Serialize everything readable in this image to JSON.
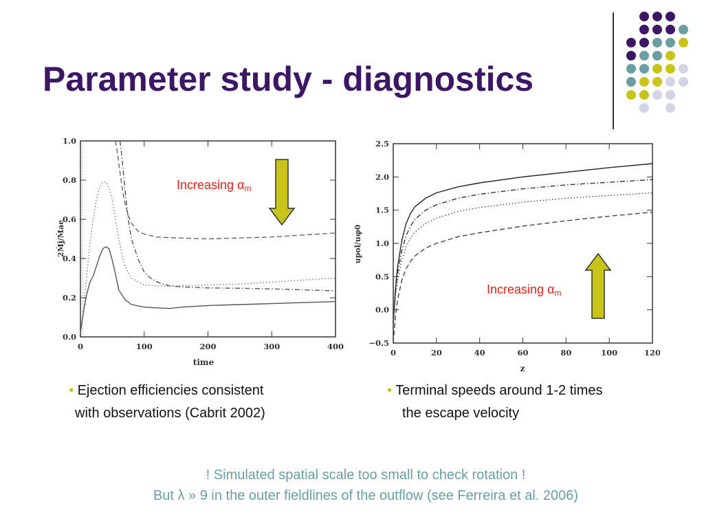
{
  "slide": {
    "title": "Parameter study - diagnostics",
    "accent_colors": [
      "#3b1766",
      "#6b9ea0",
      "#c8c41a",
      "#d4d4e8"
    ]
  },
  "bullets": {
    "left_line1": "Ejection efficiencies consistent",
    "left_line2": "with observations (Cabrit 2002)",
    "right_line1": "Terminal speeds around 1-2 times",
    "right_line2": "the escape velocity",
    "bullet_glyph": "•"
  },
  "notes": {
    "line1": "! Simulated spatial scale too small to check rotation !",
    "line2": "But λ » 9 in the outer fieldlines of the outflow (see Ferreira et al. 2006)"
  },
  "chart_data": [
    {
      "type": "line",
      "xlabel": "time",
      "ylabel": "2Ṁj/Ṁae",
      "xlim": [
        0,
        400
      ],
      "ylim": [
        0,
        1.0
      ],
      "xticks": [
        "0",
        "100",
        "200",
        "300",
        "400"
      ],
      "yticks": [
        "0.0",
        "0.2",
        "0.4",
        "0.6",
        "0.8",
        "1.0"
      ],
      "annotation": {
        "text": "Increasing ",
        "symbol": "α",
        "sub": "m",
        "arrow": "down"
      },
      "series": [
        {
          "style": "solid",
          "color": "#555555",
          "x": [
            0,
            5,
            10,
            15,
            20,
            25,
            30,
            35,
            40,
            45,
            50,
            55,
            60,
            70,
            80,
            100,
            120,
            140,
            160,
            200,
            250,
            300,
            350,
            400
          ],
          "y": [
            0.02,
            0.13,
            0.22,
            0.28,
            0.31,
            0.36,
            0.41,
            0.45,
            0.46,
            0.45,
            0.39,
            0.32,
            0.24,
            0.19,
            0.165,
            0.152,
            0.148,
            0.145,
            0.152,
            0.16,
            0.165,
            0.17,
            0.175,
            0.18
          ]
        },
        {
          "style": "dotted",
          "color": "#777777",
          "x": [
            0,
            5,
            10,
            15,
            20,
            25,
            30,
            35,
            40,
            45,
            50,
            55,
            60,
            65,
            70,
            80,
            100,
            120,
            150,
            200,
            250,
            300,
            350,
            400
          ],
          "y": [
            0.02,
            0.15,
            0.32,
            0.48,
            0.6,
            0.7,
            0.76,
            0.79,
            0.79,
            0.76,
            0.7,
            0.6,
            0.5,
            0.42,
            0.36,
            0.3,
            0.265,
            0.26,
            0.26,
            0.265,
            0.27,
            0.28,
            0.29,
            0.3
          ]
        },
        {
          "style": "dashdot",
          "color": "#555555",
          "x": [
            62,
            65,
            70,
            75,
            80,
            90,
            100,
            110,
            120,
            140,
            160,
            200,
            250,
            300,
            350,
            400
          ],
          "y": [
            1.0,
            0.92,
            0.75,
            0.6,
            0.5,
            0.4,
            0.33,
            0.3,
            0.28,
            0.26,
            0.255,
            0.25,
            0.248,
            0.245,
            0.24,
            0.235
          ]
        },
        {
          "style": "dashed",
          "color": "#666666",
          "x": [
            55,
            58,
            62,
            66,
            70,
            75,
            80,
            90,
            100,
            120,
            150,
            200,
            250,
            300,
            350,
            400
          ],
          "y": [
            1.0,
            0.94,
            0.84,
            0.75,
            0.68,
            0.62,
            0.58,
            0.54,
            0.525,
            0.51,
            0.505,
            0.5,
            0.505,
            0.51,
            0.52,
            0.53
          ]
        }
      ]
    },
    {
      "type": "line",
      "xlabel": "z",
      "ylabel": "upol/uφ0",
      "xlim": [
        0,
        120
      ],
      "ylim": [
        -0.5,
        2.5
      ],
      "xticks": [
        "0",
        "20",
        "40",
        "60",
        "80",
        "100",
        "120"
      ],
      "yticks": [
        "−0.5",
        "0.0",
        "0.5",
        "1.0",
        "1.5",
        "2.0",
        "2.5"
      ],
      "annotation": {
        "text": "Increasing ",
        "symbol": "α",
        "sub": "m",
        "arrow": "up"
      },
      "series": [
        {
          "style": "solid",
          "color": "#222222",
          "x": [
            0,
            1,
            2,
            4,
            6,
            8,
            10,
            15,
            20,
            30,
            40,
            60,
            80,
            100,
            120
          ],
          "y": [
            -0.2,
            0.3,
            0.65,
            1.05,
            1.3,
            1.45,
            1.55,
            1.68,
            1.76,
            1.85,
            1.91,
            2.0,
            2.07,
            2.14,
            2.2
          ]
        },
        {
          "style": "dashdot",
          "color": "#333333",
          "x": [
            0,
            1,
            2,
            4,
            6,
            8,
            10,
            15,
            20,
            30,
            40,
            60,
            80,
            100,
            120
          ],
          "y": [
            -0.2,
            0.25,
            0.55,
            0.9,
            1.12,
            1.26,
            1.36,
            1.5,
            1.58,
            1.68,
            1.74,
            1.82,
            1.88,
            1.92,
            1.96
          ]
        },
        {
          "style": "dotted",
          "color": "#444444",
          "x": [
            0,
            1,
            2,
            4,
            6,
            8,
            10,
            15,
            20,
            30,
            40,
            60,
            80,
            100,
            120
          ],
          "y": [
            -0.2,
            0.2,
            0.45,
            0.75,
            0.95,
            1.08,
            1.17,
            1.3,
            1.38,
            1.48,
            1.54,
            1.62,
            1.68,
            1.72,
            1.76
          ]
        },
        {
          "style": "dashed",
          "color": "#444444",
          "x": [
            0,
            1,
            2,
            4,
            6,
            8,
            10,
            15,
            20,
            30,
            40,
            60,
            80,
            100,
            120
          ],
          "y": [
            -0.5,
            -0.1,
            0.15,
            0.45,
            0.62,
            0.73,
            0.81,
            0.93,
            1.0,
            1.1,
            1.16,
            1.26,
            1.34,
            1.41,
            1.47
          ]
        }
      ]
    }
  ]
}
